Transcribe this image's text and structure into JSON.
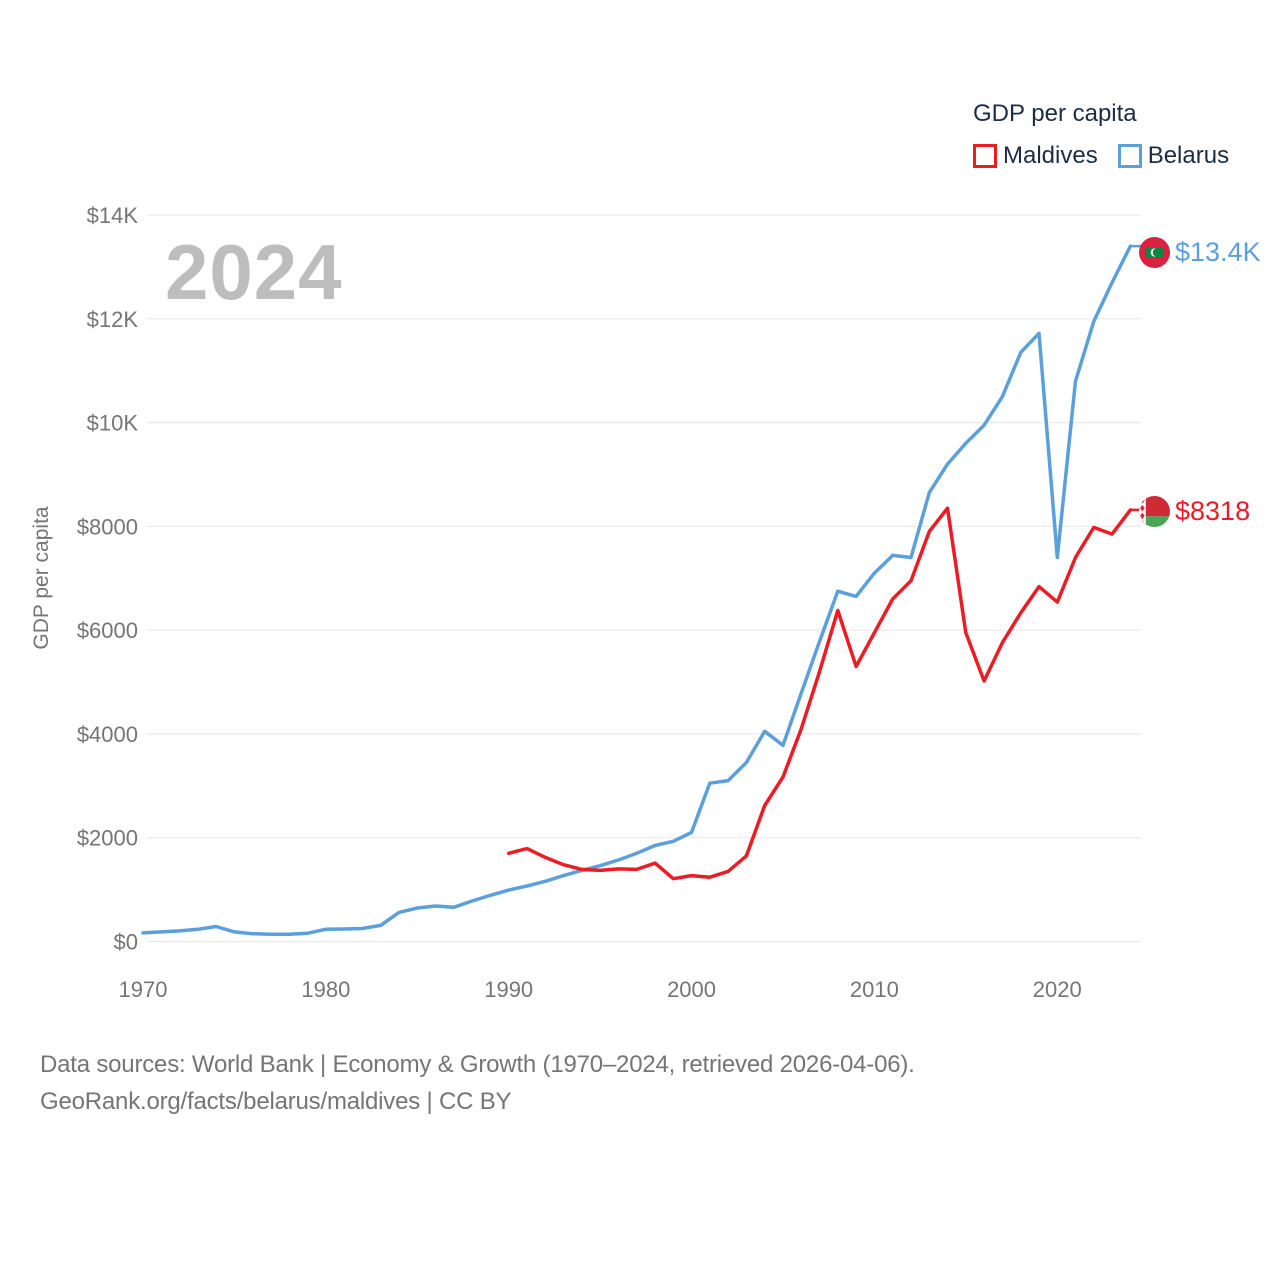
{
  "legend": {
    "title": "GDP per capita",
    "items": [
      {
        "label": "Belarus",
        "color": "#EC1C24"
      },
      {
        "label": "Maldives",
        "color": "#5B9FDB"
      }
    ]
  },
  "watermark": "2024",
  "end_labels": {
    "maldives": "$13.4K",
    "belarus": "$8318"
  },
  "footer": {
    "line1": "Data sources: World Bank | Economy & Growth (1970–2024, retrieved 2026-04-06).",
    "line2": "GeoRank.org/facts/belarus/maldives | CC BY"
  },
  "chart_data": {
    "type": "line",
    "title": "GDP per capita",
    "ylabel": "GDP per capita",
    "ylim": [
      0,
      14000
    ],
    "xlim": [
      1970,
      2024
    ],
    "grid": "horizontal",
    "legend_position": "top-right",
    "y_ticks": [
      {
        "value": 0,
        "label": "$0"
      },
      {
        "value": 2000,
        "label": "$2000"
      },
      {
        "value": 4000,
        "label": "$4000"
      },
      {
        "value": 6000,
        "label": "$6000"
      },
      {
        "value": 8000,
        "label": "$8000"
      },
      {
        "value": 10000,
        "label": "$10K"
      },
      {
        "value": 12000,
        "label": "$12K"
      },
      {
        "value": 14000,
        "label": "$14K"
      }
    ],
    "x_ticks": [
      {
        "value": 1970,
        "label": "1970"
      },
      {
        "value": 1980,
        "label": "1980"
      },
      {
        "value": 1990,
        "label": "1990"
      },
      {
        "value": 2000,
        "label": "2000"
      },
      {
        "value": 2010,
        "label": "2010"
      },
      {
        "value": 2020,
        "label": "2020"
      }
    ],
    "series": [
      {
        "name": "Maldives",
        "color": "#5B9FDB",
        "start_year": 1970,
        "end_year": 2024,
        "end_value_label": "$13.4K",
        "values": [
          165,
          185,
          205,
          235,
          290,
          185,
          150,
          140,
          140,
          160,
          235,
          240,
          250,
          310,
          560,
          645,
          685,
          660,
          780,
          890,
          990,
          1070,
          1160,
          1270,
          1370,
          1460,
          1570,
          1700,
          1850,
          1930,
          2100,
          3050,
          3100,
          3450,
          4050,
          3780,
          4790,
          5780,
          6750,
          6650,
          7100,
          7440,
          7400,
          8650,
          9200,
          9600,
          9950,
          10500,
          11350,
          11720,
          7400,
          10800,
          11950,
          12700,
          13400
        ]
      },
      {
        "name": "Belarus",
        "color": "#EC1C24",
        "start_year": 1990,
        "end_year": 2024,
        "end_value_label": "$8318",
        "values": [
          1700,
          1790,
          1620,
          1480,
          1390,
          1370,
          1400,
          1390,
          1510,
          1210,
          1270,
          1240,
          1350,
          1650,
          2620,
          3170,
          4100,
          5200,
          6380,
          5300,
          5950,
          6600,
          6950,
          7900,
          8350,
          5950,
          5020,
          5760,
          6330,
          6840,
          6540,
          7400,
          7980,
          7850,
          8318
        ]
      }
    ]
  }
}
